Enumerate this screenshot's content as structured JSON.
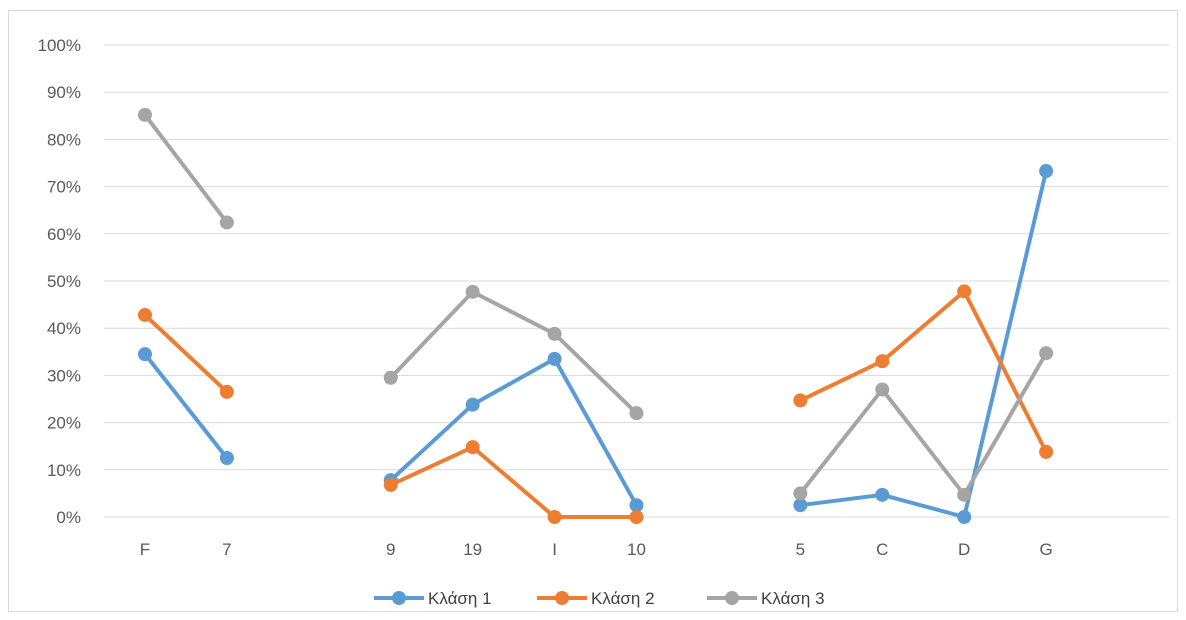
{
  "chart_data": {
    "type": "line",
    "title": "",
    "xlabel": "",
    "ylabel": "",
    "categories": [
      "F",
      "7",
      "",
      "9",
      "19",
      "I",
      "10",
      "",
      "5",
      "C",
      "D",
      "G",
      ""
    ],
    "ylim": [
      0,
      1
    ],
    "y_ticks": [
      "0%",
      "10%",
      "20%",
      "30%",
      "40%",
      "50%",
      "60%",
      "70%",
      "80%",
      "90%",
      "100%"
    ],
    "grid": true,
    "legend_position": "bottom",
    "series": [
      {
        "name": "Κλάση 1",
        "color": "#5b9bd5",
        "values": [
          0.345,
          0.125,
          null,
          0.078,
          0.238,
          0.335,
          0.025,
          null,
          0.025,
          0.047,
          0.0,
          0.733,
          null
        ]
      },
      {
        "name": "Κλάση 2",
        "color": "#ed7d31",
        "values": [
          0.428,
          0.265,
          null,
          0.068,
          0.148,
          0.0,
          0.0,
          null,
          0.247,
          0.33,
          0.478,
          0.138,
          null
        ]
      },
      {
        "name": "Κλάση 3",
        "color": "#a5a5a5",
        "values": [
          0.852,
          0.624,
          null,
          0.295,
          0.477,
          0.388,
          0.22,
          null,
          0.05,
          0.27,
          0.047,
          0.347,
          null
        ]
      }
    ]
  }
}
